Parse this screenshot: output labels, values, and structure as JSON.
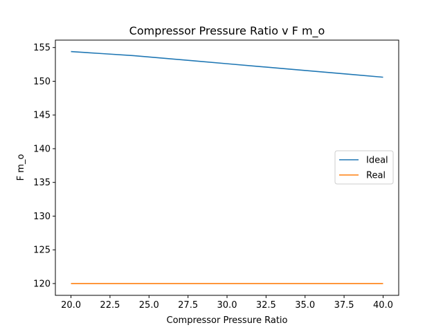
{
  "chart_data": {
    "type": "line",
    "title": "Compressor Pressure Ratio v F m_o",
    "xlabel": "Compressor Pressure Ratio",
    "ylabel": "F m_o",
    "xlim": [
      19.0,
      41.0
    ],
    "ylim": [
      118.25,
      156.1
    ],
    "xticks": [
      20.0,
      22.5,
      25.0,
      27.5,
      30.0,
      32.5,
      35.0,
      37.5,
      40.0
    ],
    "xtick_labels": [
      "20.0",
      "22.5",
      "25.0",
      "27.5",
      "30.0",
      "32.5",
      "35.0",
      "37.5",
      "40.0"
    ],
    "yticks": [
      120,
      125,
      130,
      135,
      140,
      145,
      150,
      155
    ],
    "ytick_labels": [
      "120",
      "125",
      "130",
      "135",
      "140",
      "145",
      "150",
      "155"
    ],
    "grid": false,
    "legend_position": "center-right",
    "series": [
      {
        "name": "Ideal",
        "color": "#1f77b4",
        "x": [
          20,
          22,
          24,
          26,
          28,
          30,
          32,
          34,
          36,
          38,
          40
        ],
        "y": [
          154.4,
          154.1,
          153.8,
          153.4,
          153.0,
          152.6,
          152.2,
          151.8,
          151.4,
          151.0,
          150.6
        ]
      },
      {
        "name": "Real",
        "color": "#ff7f0e",
        "x": [
          20,
          40
        ],
        "y": [
          120.0,
          120.0
        ]
      }
    ]
  }
}
